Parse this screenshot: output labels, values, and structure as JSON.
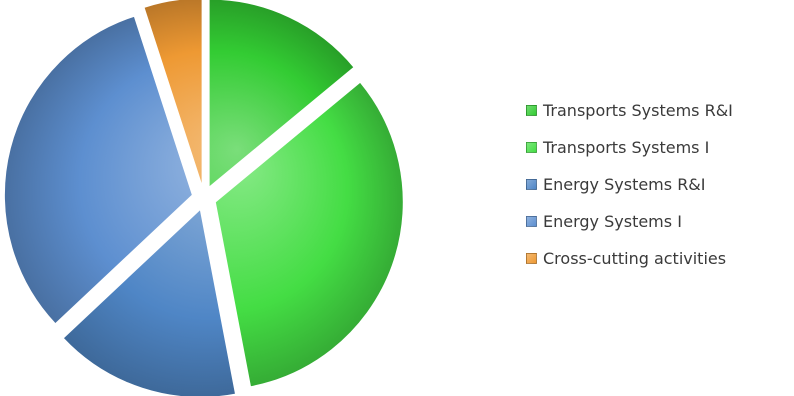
{
  "chart_data": {
    "type": "pie",
    "title": "",
    "slices": [
      {
        "label": "Transports Systems R&I",
        "value": 14,
        "color": "#33cc33"
      },
      {
        "label": "Transports Systems I",
        "value": 33,
        "color": "#44dd44"
      },
      {
        "label": "Energy Systems R&I",
        "value": 16,
        "color": "#4f86c6"
      },
      {
        "label": "Energy Systems I",
        "value": 32,
        "color": "#5d8fd0"
      },
      {
        "label": "Cross-cutting activities",
        "value": 5,
        "color": "#ee9933"
      }
    ],
    "exploded": true,
    "legend": {
      "position": "right"
    }
  }
}
